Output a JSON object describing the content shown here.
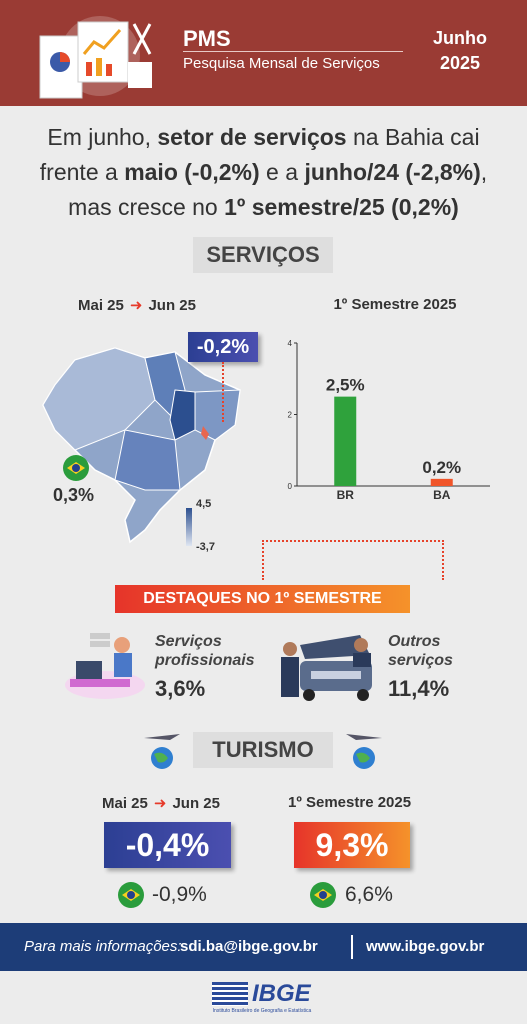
{
  "header": {
    "title": "PMS",
    "subtitle": "Pesquisa Mensal de Serviços",
    "month": "Junho",
    "year": "2025"
  },
  "headline": {
    "segments": [
      {
        "text": "Em junho, ",
        "bold": false
      },
      {
        "text": "setor de serviços",
        "bold": true
      },
      {
        "text": " na Bahia cai frente a ",
        "bold": false
      },
      {
        "text": "maio (-0,2%)",
        "bold": true
      },
      {
        "text": " e a ",
        "bold": false
      },
      {
        "text": "junho/24 (-2,8%)",
        "bold": true
      },
      {
        "text": ", mas cresce no ",
        "bold": false
      },
      {
        "text": "1º semestre/25 (0,2%)",
        "bold": true
      }
    ]
  },
  "services": {
    "title": "SERVIÇOS",
    "period_from": "Mai 25",
    "period_to": "Jun 25",
    "ba_change": "-0,2%",
    "br_change": "0,3%",
    "legend_max": "4,5",
    "legend_min": "-3,7",
    "chart_data": {
      "type": "bar",
      "title": "1º Semestre 2025",
      "categories": [
        "BR",
        "BA"
      ],
      "values": [
        2.5,
        0.2
      ],
      "value_labels": [
        "2,5%",
        "0,2%"
      ],
      "colors": [
        "#2fa23c",
        "#f0552a"
      ],
      "ylim": [
        0,
        4
      ],
      "yticks": [
        0,
        2,
        4
      ]
    }
  },
  "highlights": {
    "title": "DESTAQUES NO 1º SEMESTRE",
    "items": [
      {
        "label": "Serviços profissionais",
        "value": "3,6%"
      },
      {
        "label": "Outros serviços",
        "value": "11,4%"
      }
    ]
  },
  "tourism": {
    "title": "TURISMO",
    "monthly": {
      "period_from": "Mai 25",
      "period_to": "Jun 25",
      "ba": "-0,4%",
      "br": "-0,9%"
    },
    "semester": {
      "title": "1º Semestre 2025",
      "ba": "9,3%",
      "br": "6,6%"
    }
  },
  "footer": {
    "label": "Para mais informações:",
    "email": "sdi.ba@ibge.gov.br",
    "site": "www.ibge.gov.br"
  },
  "logo": {
    "name": "IBGE",
    "tagline": "Instituto Brasileiro de Geografia e Estatística"
  }
}
